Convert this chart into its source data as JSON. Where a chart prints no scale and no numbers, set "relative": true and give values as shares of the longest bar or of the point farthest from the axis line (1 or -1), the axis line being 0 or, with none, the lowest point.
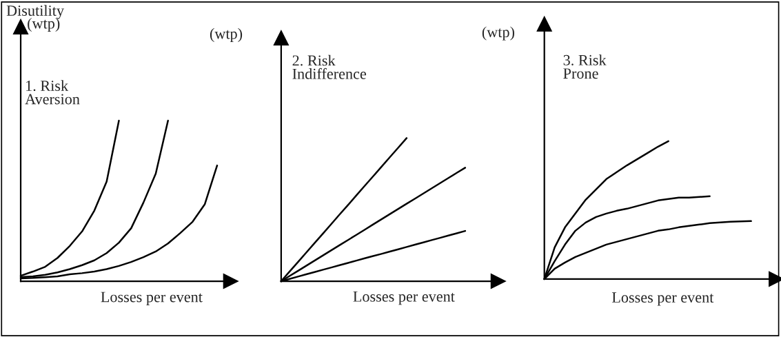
{
  "chart_data": [
    {
      "type": "line",
      "relative": true,
      "title": "1. Risk\nAversion",
      "ylabel": "(wtp)",
      "xlabel": "Losses per event",
      "annotations": [
        "Disutility"
      ],
      "categories": [
        null,
        null,
        null,
        null,
        null,
        null,
        null,
        null,
        null,
        null,
        null,
        null,
        null,
        null,
        null,
        null,
        null
      ],
      "series": [
        {
          "color": "#000000",
          "values": [
            0.034,
            0.06,
            0.09,
            0.145,
            0.22,
            0.31,
            0.44,
            0.62,
            1.0,
            null,
            null,
            null,
            null,
            null,
            null,
            null,
            null
          ]
        },
        {
          "color": "#000000",
          "values": [
            0.026,
            0.03,
            0.04,
            0.055,
            0.075,
            0.1,
            0.13,
            0.175,
            0.24,
            0.33,
            0.49,
            0.67,
            1.0,
            null,
            null,
            null,
            null
          ]
        },
        {
          "color": "#000000",
          "values": [
            0.017,
            0.02,
            0.025,
            0.03,
            0.043,
            0.05,
            0.06,
            0.075,
            0.095,
            0.12,
            0.15,
            0.185,
            0.235,
            0.3,
            0.37,
            0.48,
            0.721
          ]
        }
      ]
    },
    {
      "type": "line",
      "relative": true,
      "title": "2. Risk\nIndifference",
      "ylabel": "(wtp)",
      "xlabel": "Losses per event",
      "categories": [
        null,
        null,
        null,
        null,
        null,
        null,
        null,
        null,
        null,
        null,
        null,
        null,
        null,
        null,
        null,
        null,
        null,
        null,
        null,
        null,
        null,
        null,
        null
      ],
      "series": [
        {
          "color": "#000000",
          "values": [
            0,
            0.067,
            0.133,
            0.2,
            0.267,
            0.333,
            0.4,
            0.467,
            0.533,
            0.6,
            0.667,
            0.733,
            0.8,
            0.867,
            0.933,
            1.0,
            null,
            null,
            null,
            null,
            null,
            null,
            null
          ]
        },
        {
          "color": "#000000",
          "values": [
            0,
            0.036,
            0.072,
            0.108,
            0.144,
            0.18,
            0.216,
            0.252,
            0.288,
            0.324,
            0.36,
            0.397,
            0.433,
            0.469,
            0.505,
            0.541,
            0.577,
            0.613,
            0.649,
            0.685,
            0.721,
            0.757,
            0.793
          ]
        },
        {
          "color": "#000000",
          "values": [
            0,
            0.016,
            0.032,
            0.048,
            0.064,
            0.08,
            0.096,
            0.112,
            0.128,
            0.144,
            0.16,
            0.176,
            0.191,
            0.207,
            0.223,
            0.239,
            0.255,
            0.271,
            0.287,
            0.303,
            0.319,
            0.335,
            0.351
          ]
        }
      ]
    },
    {
      "type": "line",
      "relative": true,
      "title": "3. Risk\nProne",
      "ylabel": "(wtp)",
      "xlabel": "Losses per event",
      "categories": [
        null,
        null,
        null,
        null,
        null,
        null,
        null,
        null,
        null,
        null,
        null,
        null,
        null,
        null,
        null,
        null,
        null,
        null,
        null,
        null,
        null
      ],
      "series": [
        {
          "color": "#000000",
          "values": [
            0,
            0.23,
            0.375,
            0.475,
            0.575,
            0.65,
            0.725,
            0.775,
            0.825,
            0.87,
            0.915,
            0.96,
            1.0,
            null,
            null,
            null,
            null,
            null,
            null,
            null,
            null
          ]
        },
        {
          "color": "#000000",
          "values": [
            0,
            0.13,
            0.25,
            0.35,
            0.41,
            0.45,
            0.475,
            0.495,
            0.51,
            0.53,
            0.55,
            0.57,
            0.58,
            0.59,
            0.59,
            0.595,
            0.6,
            null,
            null,
            null,
            null
          ]
        },
        {
          "color": "#000000",
          "values": [
            0,
            0.075,
            0.12,
            0.16,
            0.19,
            0.22,
            0.25,
            0.27,
            0.29,
            0.31,
            0.33,
            0.35,
            0.36,
            0.375,
            0.385,
            0.395,
            0.405,
            0.41,
            0.415,
            0.418,
            0.42
          ]
        }
      ]
    }
  ]
}
